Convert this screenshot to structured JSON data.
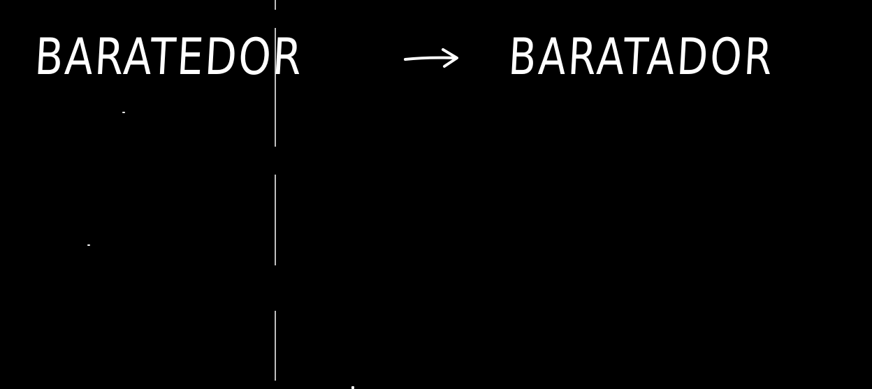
{
  "note": {
    "word_before": "BARATEDOR",
    "word_after": "BARATADOR"
  },
  "colors": {
    "background": "#000000",
    "ink": "#ffffff"
  },
  "icons": {
    "arrow": "right-arrow-icon"
  }
}
